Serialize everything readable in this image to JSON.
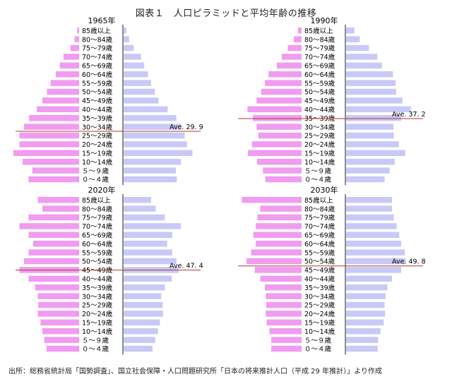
{
  "figure": {
    "title": "図表１　人口ピラミッドと平均年齢の推移",
    "source": "出所：総務省統計局「国勢調査」、国立社会保障・人口問題研究所「日本の将来推計人口（平成 29 年推計）」より作成"
  },
  "colors": {
    "male": "#f09cf0",
    "female": "#c9c9f7",
    "axis": "#444444",
    "average_line": "#b03a2e"
  },
  "chart_data": [
    {
      "type": "bar",
      "title": "1965年",
      "average_label": "Ave. 29. 9",
      "average_age": 29.9,
      "categories": [
        "85歳以上",
        "80～84歳",
        "75～79歳",
        "70～74歳",
        "65～69歳",
        "60～64歳",
        "55～59歳",
        "50～54歳",
        "45～49歳",
        "40～44歳",
        "35～39歳",
        "30～34歳",
        "25～29歳",
        "20～24歳",
        "15～19歳",
        "10～14歳",
        "５～９歳",
        "０～４歳"
      ],
      "series": [
        {
          "values": [
            0.4,
            1.0,
            1.9,
            3.4,
            4.2,
            5.1,
            6.2,
            7.0,
            8.0,
            9.2,
            10.9,
            12.0,
            13.0,
            13.0,
            14.3,
            12.3,
            10.2,
            11.0
          ]
        },
        {
          "values": [
            0.6,
            1.2,
            2.2,
            3.8,
            4.5,
            5.3,
            6.0,
            6.8,
            7.6,
            9.6,
            11.5,
            12.5,
            13.3,
            13.8,
            15.0,
            12.5,
            11.4,
            11.6
          ]
        }
      ]
    },
    {
      "type": "bar",
      "title": "1990年",
      "average_label": "Ave. 37. 2",
      "average_age": 37.2,
      "categories": [
        "85歳以上",
        "80～84歳",
        "75～79歳",
        "70～74歳",
        "65～69歳",
        "60～64歳",
        "55～59歳",
        "50～54歳",
        "45～49歳",
        "40～44歳",
        "35～39歳",
        "30～34歳",
        "25～29歳",
        "20～24歳",
        "15～19歳",
        "10～14歳",
        "５～９歳",
        "０～４歳"
      ],
      "series": [
        {
          "values": [
            0.8,
            1.7,
            3.0,
            4.3,
            5.4,
            7.2,
            8.0,
            8.8,
            9.8,
            11.8,
            10.6,
            9.8,
            9.4,
            10.8,
            11.7,
            9.7,
            8.4,
            7.9
          ]
        },
        {
          "values": [
            1.8,
            3.0,
            5.0,
            6.8,
            7.8,
            10.2,
            10.8,
            10.9,
            12.3,
            14.1,
            12.0,
            10.3,
            10.4,
            11.5,
            12.9,
            10.6,
            9.5,
            8.4
          ]
        }
      ]
    },
    {
      "type": "bar",
      "title": "2020年",
      "average_label": "Ave. 47. 4",
      "average_age": 47.4,
      "categories": [
        "85歳以上",
        "80～84歳",
        "75～79歳",
        "70～74歳",
        "65～69歳",
        "60～64歳",
        "55～59歳",
        "50～54歳",
        "45～49歳",
        "40～44歳",
        "35～39歳",
        "30～34歳",
        "25～29歳",
        "20～24歳",
        "15～19歳",
        "10～14歳",
        "５～９歳",
        "０～４歳"
      ],
      "series": [
        {
          "values": [
            9.0,
            8.0,
            11.0,
            13.0,
            11.0,
            10.0,
            11.0,
            12.0,
            13.0,
            11.0,
            9.6,
            9.0,
            8.9,
            9.0,
            8.4,
            8.0,
            7.6,
            7.1
          ]
        },
        {
          "values": [
            6.0,
            7.0,
            9.0,
            12.5,
            10.6,
            9.5,
            10.6,
            11.5,
            12.0,
            10.5,
            9.0,
            8.2,
            8.5,
            8.6,
            7.9,
            7.5,
            6.9,
            6.3
          ]
        }
      ]
    },
    {
      "type": "bar",
      "title": "2030年",
      "average_label": "Ave. 49. 8",
      "average_age": 49.8,
      "categories": [
        "85歳以上",
        "80～84歳",
        "75～79歳",
        "70～74歳",
        "65～69歳",
        "60～64歳",
        "55～59歳",
        "50～54歳",
        "45～49歳",
        "40～44歳",
        "35～39歳",
        "30～34歳",
        "25～29歳",
        "20～24歳",
        "15～19歳",
        "10～14歳",
        "５～９歳",
        "０～４歳"
      ],
      "series": [
        {
          "values": [
            13.0,
            9.0,
            9.6,
            10.0,
            10.5,
            10.0,
            11.0,
            12.0,
            10.2,
            9.0,
            8.0,
            7.8,
            7.7,
            7.8,
            7.6,
            7.0,
            6.6,
            6.6
          ]
        },
        {
          "values": [
            10.0,
            10.0,
            10.4,
            11.0,
            11.6,
            12.0,
            12.8,
            13.0,
            12.0,
            10.0,
            9.0,
            8.6,
            8.4,
            8.5,
            8.2,
            7.5,
            7.0,
            6.9
          ]
        }
      ]
    }
  ]
}
